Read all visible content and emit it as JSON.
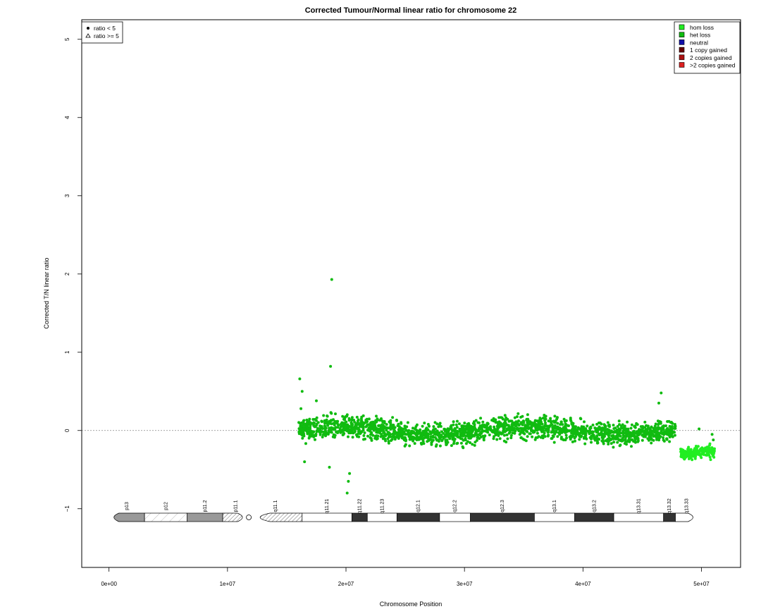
{
  "chart_data": {
    "type": "scatter",
    "title": "Corrected Tumour/Normal linear ratio for chromosome  22",
    "xlabel": "Chromosome Position",
    "ylabel": "Corrected T/N linear ratio",
    "xlim": [
      -2300000,
      53300000
    ],
    "ylim": [
      -1.75,
      5.25
    ],
    "x_ticks": [
      {
        "value": 0,
        "label": "0e+00"
      },
      {
        "value": 10000000,
        "label": "1e+07"
      },
      {
        "value": 20000000,
        "label": "2e+07"
      },
      {
        "value": 30000000,
        "label": "3e+07"
      },
      {
        "value": 40000000,
        "label": "4e+07"
      },
      {
        "value": 50000000,
        "label": "5e+07"
      }
    ],
    "y_ticks": [
      {
        "value": -1,
        "label": "−1"
      },
      {
        "value": 0,
        "label": "0"
      },
      {
        "value": 1,
        "label": "1"
      },
      {
        "value": 2,
        "label": "2"
      },
      {
        "value": 3,
        "label": "3"
      },
      {
        "value": 4,
        "label": "4"
      },
      {
        "value": 5,
        "label": "5"
      }
    ],
    "reference_line": 0,
    "shape_legend": {
      "position": "top-left",
      "items": [
        {
          "symbol": "dot",
          "label": "ratio < 5"
        },
        {
          "symbol": "triangle",
          "label": "ratio >= 5"
        }
      ]
    },
    "status_legend": {
      "position": "top-right",
      "items": [
        {
          "label": "hom loss",
          "color": "#22ee22"
        },
        {
          "label": "het loss",
          "color": "#10bb10"
        },
        {
          "label": "neutral",
          "color": "#1010aa"
        },
        {
          "label": "1 copy gained",
          "color": "#660000"
        },
        {
          "label": "2 copies gained",
          "color": "#aa1010"
        },
        {
          "label": ">2 copies gained",
          "color": "#dd2020"
        }
      ]
    },
    "series": [
      {
        "status": "het loss",
        "color": "#10bb10",
        "x_range": [
          16000000,
          47800000
        ],
        "center": 0.0,
        "spread": 0.12
      },
      {
        "status": "hom loss",
        "color": "#22ee22",
        "x_range": [
          48200000,
          51100000
        ],
        "center": -0.32,
        "spread": 0.07
      }
    ],
    "outliers": [
      {
        "x": 18800000,
        "y": 1.93
      },
      {
        "x": 18700000,
        "y": 0.82
      },
      {
        "x": 16100000,
        "y": 0.66
      },
      {
        "x": 16300000,
        "y": 0.5
      },
      {
        "x": 16200000,
        "y": 0.28
      },
      {
        "x": 17500000,
        "y": 0.38
      },
      {
        "x": 46600000,
        "y": 0.48
      },
      {
        "x": 46400000,
        "y": 0.35
      },
      {
        "x": 20300000,
        "y": -0.55
      },
      {
        "x": 20200000,
        "y": -0.65
      },
      {
        "x": 20100000,
        "y": -0.8
      },
      {
        "x": 18600000,
        "y": -0.47
      },
      {
        "x": 16500000,
        "y": -0.4
      },
      {
        "x": 49800000,
        "y": 0.02
      },
      {
        "x": 50900000,
        "y": -0.05
      },
      {
        "x": 51000000,
        "y": -0.12
      }
    ],
    "ideogram": {
      "centromere": 11800000,
      "bands": [
        {
          "name": "p13",
          "start": 0,
          "end": 3000000,
          "fill": "stalk"
        },
        {
          "name": "p12",
          "start": 3000000,
          "end": 6600000,
          "fill": "hatch-light"
        },
        {
          "name": "p11.2",
          "start": 6600000,
          "end": 9600000,
          "fill": "#999999"
        },
        {
          "name": "p11.1",
          "start": 9600000,
          "end": 11800000,
          "fill": "hatch"
        },
        {
          "name": "q11.1",
          "start": 11800000,
          "end": 16300000,
          "fill": "hatch"
        },
        {
          "name": "q11.21",
          "start": 16300000,
          "end": 20500000,
          "fill": "#ffffff"
        },
        {
          "name": "q11.22",
          "start": 20500000,
          "end": 21800000,
          "fill": "#333333"
        },
        {
          "name": "q11.23",
          "start": 21800000,
          "end": 24300000,
          "fill": "#ffffff"
        },
        {
          "name": "q12.1",
          "start": 24300000,
          "end": 27900000,
          "fill": "#333333"
        },
        {
          "name": "q12.2",
          "start": 27900000,
          "end": 30500000,
          "fill": "#ffffff"
        },
        {
          "name": "q12.3",
          "start": 30500000,
          "end": 35900000,
          "fill": "#333333"
        },
        {
          "name": "q13.1",
          "start": 35900000,
          "end": 39300000,
          "fill": "#ffffff"
        },
        {
          "name": "q13.2",
          "start": 39300000,
          "end": 42600000,
          "fill": "#333333"
        },
        {
          "name": "q13.31",
          "start": 42600000,
          "end": 46800000,
          "fill": "#ffffff"
        },
        {
          "name": "q13.32",
          "start": 46800000,
          "end": 47800000,
          "fill": "#333333"
        },
        {
          "name": "q13.33",
          "start": 47800000,
          "end": 49700000,
          "fill": "#ffffff"
        }
      ]
    }
  }
}
